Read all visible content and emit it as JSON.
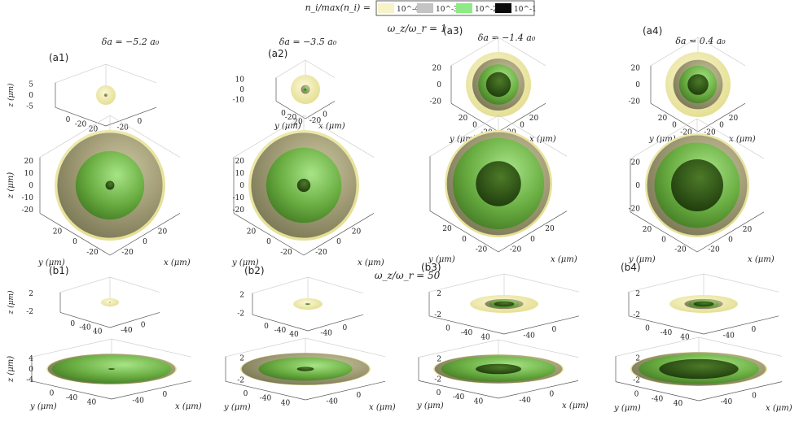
{
  "legend": {
    "label": "n_i/max(n_i) =",
    "entries": [
      {
        "text": "10^-4",
        "color": "#f6f3c8"
      },
      {
        "text": "10^-3",
        "color": "#c4c4c4"
      },
      {
        "text": "10^-2",
        "color": "#8eea84"
      },
      {
        "text": "10^-1",
        "color": "#0a0a0a"
      }
    ]
  },
  "rows": [
    {
      "title": "ω_z/ω_r = 1"
    },
    {
      "title": "ω_z/ω_r = 50"
    }
  ],
  "columns": [
    {
      "label": "δa = −5.2 a₀"
    },
    {
      "label": "δa = −3.5 a₀"
    },
    {
      "label": "δa = −1.4 a₀"
    },
    {
      "label": "δa = 0.4 a₀"
    }
  ],
  "axes": {
    "z": "z (μm)",
    "y": "y (μm)",
    "x": "x (μm)"
  },
  "panels": [
    {
      "tag": "(a1)",
      "z_ticks": [
        "5",
        "0",
        "-5"
      ],
      "xy_ticks": [
        "0",
        "-20",
        "20",
        "0",
        "-20"
      ],
      "p": [
        0.18,
        0.08,
        0.04
      ]
    },
    {
      "tag": "(a2)",
      "z_ticks": [
        "10",
        "0",
        "-10"
      ],
      "xy_ticks": [
        "0",
        "-20",
        "20",
        "0",
        "-20"
      ],
      "p": [
        0.3,
        0.14,
        0.06
      ]
    },
    {
      "tag": "(a3)",
      "z_ticks": [
        "20",
        "0",
        "-20"
      ],
      "xy_ticks": [
        "20",
        "0",
        "-20",
        "20",
        "0",
        "-20"
      ],
      "p": [
        0.8,
        0.62,
        0.38
      ]
    },
    {
      "tag": "(a4)",
      "z_ticks": [
        "20",
        "0",
        "-20"
      ],
      "xy_ticks": [
        "20",
        "0",
        "-20",
        "20",
        "0",
        "-20"
      ],
      "p": [
        0.76,
        0.58,
        0.32
      ]
    },
    {
      "z_ticks": [
        "20",
        "10",
        "0",
        "-10",
        "-20"
      ],
      "xy_ticks": [
        "20",
        "0",
        "-20",
        "20",
        "0",
        "-20"
      ],
      "p": [
        0.95,
        0.62,
        0.08
      ]
    },
    {
      "z_ticks": [
        "20",
        "10",
        "0",
        "-10",
        "-20"
      ],
      "xy_ticks": [
        "20",
        "0",
        "-20",
        "20",
        "0",
        "-20"
      ],
      "p": [
        0.95,
        0.68,
        0.12
      ]
    },
    {
      "z_ticks": [
        "",
        "",
        "",
        "",
        ""
      ],
      "xy_ticks": [
        "20",
        "0",
        "-20",
        "20",
        "0",
        "-20"
      ],
      "p": [
        0.96,
        0.85,
        0.42
      ]
    },
    {
      "z_ticks": [
        "20",
        "0",
        "-20"
      ],
      "xy_ticks": [
        "20",
        "0",
        "-20",
        "20",
        "0",
        "-20"
      ],
      "p": [
        0.96,
        0.82,
        0.5
      ]
    },
    {
      "tag": "(b1)",
      "z_ticks": [
        "2",
        "-2"
      ],
      "xy_ticks": [
        "0",
        "-40",
        "40",
        "0",
        "-40"
      ],
      "p": [
        0.1,
        0.06,
        0.03
      ]
    },
    {
      "tag": "(b2)",
      "z_ticks": [
        "2",
        "-2"
      ],
      "xy_ticks": [
        "0",
        "-40",
        "40",
        "0",
        "-40"
      ],
      "p": [
        0.18,
        0.12,
        0.05
      ]
    },
    {
      "tag": "(b3)",
      "z_ticks": [
        "2",
        "-2"
      ],
      "xy_ticks": [
        "0",
        "-40",
        "40",
        "0",
        "-40"
      ],
      "p": [
        0.56,
        0.44,
        0.3
      ]
    },
    {
      "tag": "(b4)",
      "z_ticks": [
        "2",
        "-2"
      ],
      "xy_ticks": [
        "0",
        "-40",
        "40",
        "0",
        "-40"
      ],
      "p": [
        0.56,
        0.44,
        0.3
      ]
    },
    {
      "z_ticks": [
        "4",
        "0",
        "-4"
      ],
      "xy_ticks": [
        "0",
        "-40",
        "40",
        "0",
        "-40"
      ],
      "p": [
        0.98,
        0.92,
        0.05
      ]
    },
    {
      "z_ticks": [
        "2",
        "-2"
      ],
      "xy_ticks": [
        "0",
        "-40",
        "40",
        "0",
        "-40"
      ],
      "p": [
        0.98,
        0.72,
        0.13
      ]
    },
    {
      "z_ticks": [
        "2",
        "-2"
      ],
      "xy_ticks": [
        "0",
        "-40",
        "40",
        "0",
        "-40"
      ],
      "p": [
        0.98,
        0.88,
        0.35
      ]
    },
    {
      "z_ticks": [
        "2",
        "-2"
      ],
      "xy_ticks": [
        "0",
        "-40",
        "40",
        "0",
        "-40"
      ],
      "p": [
        0.98,
        0.88,
        0.58
      ]
    }
  ]
}
